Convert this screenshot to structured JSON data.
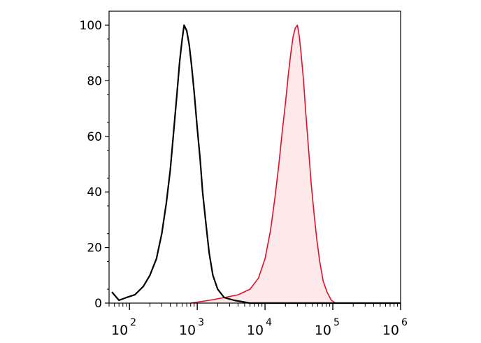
{
  "chart_data": {
    "type": "area",
    "x_scale": "log",
    "xlim": [
      50,
      1000000
    ],
    "ylim": [
      0,
      100
    ],
    "x_ticks": [
      {
        "value": 100,
        "base": "10",
        "exp": "2"
      },
      {
        "value": 1000,
        "base": "10",
        "exp": "3"
      },
      {
        "value": 10000,
        "base": "10",
        "exp": "4"
      },
      {
        "value": 100000,
        "base": "10",
        "exp": "5"
      },
      {
        "value": 1000000,
        "base": "10",
        "exp": "6"
      }
    ],
    "y_ticks": [
      "0",
      "20",
      "40",
      "60",
      "80",
      "100"
    ],
    "grid": false,
    "series": [
      {
        "color": "#000000",
        "fill": "none",
        "points": [
          [
            55,
            4
          ],
          [
            70,
            1
          ],
          [
            90,
            2
          ],
          [
            120,
            3
          ],
          [
            160,
            6
          ],
          [
            200,
            10
          ],
          [
            250,
            16
          ],
          [
            300,
            25
          ],
          [
            350,
            36
          ],
          [
            400,
            48
          ],
          [
            450,
            62
          ],
          [
            500,
            75
          ],
          [
            550,
            87
          ],
          [
            600,
            95
          ],
          [
            640,
            100
          ],
          [
            700,
            98
          ],
          [
            760,
            93
          ],
          [
            820,
            86
          ],
          [
            900,
            76
          ],
          [
            1000,
            63
          ],
          [
            1100,
            52
          ],
          [
            1200,
            40
          ],
          [
            1350,
            28
          ],
          [
            1500,
            18
          ],
          [
            1700,
            10
          ],
          [
            2000,
            5
          ],
          [
            2500,
            2
          ],
          [
            3500,
            1
          ],
          [
            6000,
            0
          ],
          [
            1000000,
            0
          ]
        ]
      },
      {
        "color": "#e0102a",
        "fill": "#fde8ea",
        "points": [
          [
            800,
            0
          ],
          [
            1500,
            1
          ],
          [
            2500,
            2
          ],
          [
            4000,
            3
          ],
          [
            6000,
            5
          ],
          [
            8000,
            9
          ],
          [
            10000,
            16
          ],
          [
            12000,
            26
          ],
          [
            14000,
            38
          ],
          [
            16000,
            50
          ],
          [
            18000,
            62
          ],
          [
            20000,
            72
          ],
          [
            22000,
            82
          ],
          [
            24000,
            90
          ],
          [
            26000,
            96
          ],
          [
            28000,
            99
          ],
          [
            30000,
            100
          ],
          [
            32000,
            96
          ],
          [
            34000,
            90
          ],
          [
            37000,
            80
          ],
          [
            40000,
            68
          ],
          [
            44000,
            55
          ],
          [
            48000,
            43
          ],
          [
            53000,
            32
          ],
          [
            58000,
            23
          ],
          [
            64000,
            15
          ],
          [
            72000,
            8
          ],
          [
            82000,
            4
          ],
          [
            95000,
            1
          ],
          [
            110000,
            0
          ]
        ]
      }
    ]
  }
}
